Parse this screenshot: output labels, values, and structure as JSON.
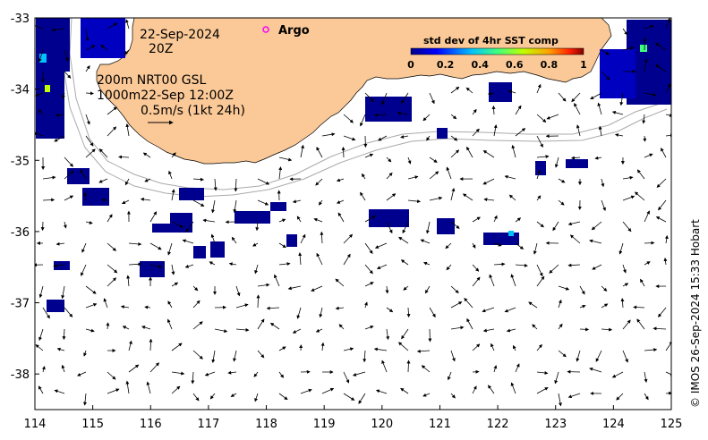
{
  "map": {
    "lon_range": [
      114,
      125
    ],
    "lat_range": [
      -38.5,
      -33
    ],
    "x_ticks": [
      "114",
      "115",
      "116",
      "117",
      "118",
      "119",
      "120",
      "121",
      "122",
      "123",
      "124",
      "125"
    ],
    "y_ticks": [
      "-33",
      "-34",
      "-35",
      "-36",
      "-37",
      "-38"
    ],
    "colors": {
      "land": "#fbc997",
      "ocean": "#ffffff",
      "bathymetry": "#aaaaaa",
      "argo": "#ff00ff",
      "sst_low": "#00008f",
      "sst_mid": "#00c0ff",
      "sst_high": "#ff3000"
    }
  },
  "annotations": {
    "date": "22-Sep-2024",
    "time": "20Z",
    "line1": "200m  NRT00 GSL",
    "line2": "1000m22-Sep 12:00Z",
    "scale": "0.5m/s (1kt 24h)"
  },
  "legend": {
    "title": "std dev of 4hr SST comp",
    "ticks": [
      "0",
      "0.2",
      "0.4",
      "0.6",
      "0.8",
      "1"
    ],
    "argo_label": "Argo"
  },
  "credit": "© IMOS 26-Sep-2024 15:33 Hobart"
}
